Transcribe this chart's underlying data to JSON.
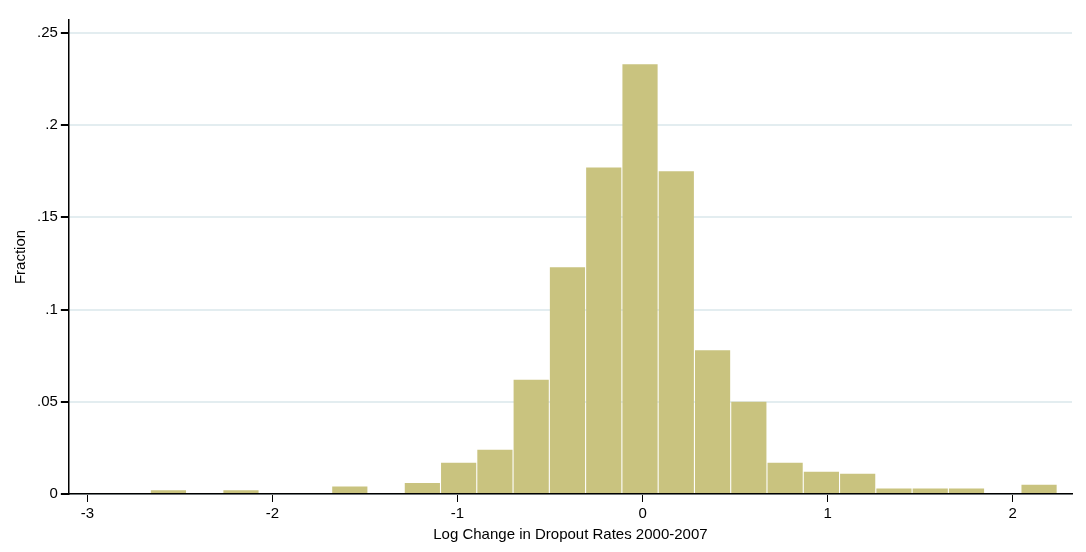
{
  "chart_data": {
    "type": "histogram",
    "xlabel": "Log Change in Dropout Rates 2000-2007",
    "ylabel": "Fraction",
    "bins": [
      -2.66,
      -2.464,
      -2.268,
      -2.072,
      -1.876,
      -1.68,
      -1.484,
      -1.288,
      -1.092,
      -0.896,
      -0.7,
      -0.504,
      -0.308,
      -0.112,
      0.084,
      0.28,
      0.476,
      0.672,
      0.868,
      1.064,
      1.26,
      1.456,
      1.652,
      1.848,
      2.044,
      2.24
    ],
    "values": [
      0.002,
      0,
      0.002,
      0,
      0,
      0.004,
      0,
      0.006,
      0.017,
      0.024,
      0.062,
      0.123,
      0.177,
      0.233,
      0.175,
      0.078,
      0.05,
      0.017,
      0.012,
      0.011,
      0.003,
      0.003,
      0.003,
      0,
      0.005
    ],
    "color": "#c9c37f",
    "xlim": [
      -3.1,
      2.32
    ],
    "ylim": [
      0,
      0.257
    ],
    "xticks": [
      -3,
      -2,
      -1,
      0,
      1,
      2
    ],
    "yticks": [
      0,
      {
        "value": 0.05,
        "label": ".05"
      },
      {
        "value": 0.1,
        "label": ".1"
      },
      {
        "value": 0.15,
        "label": ".15"
      },
      {
        "value": 0.2,
        "label": ".2"
      },
      {
        "value": 0.25,
        "label": ".25"
      }
    ],
    "grid": "y"
  }
}
